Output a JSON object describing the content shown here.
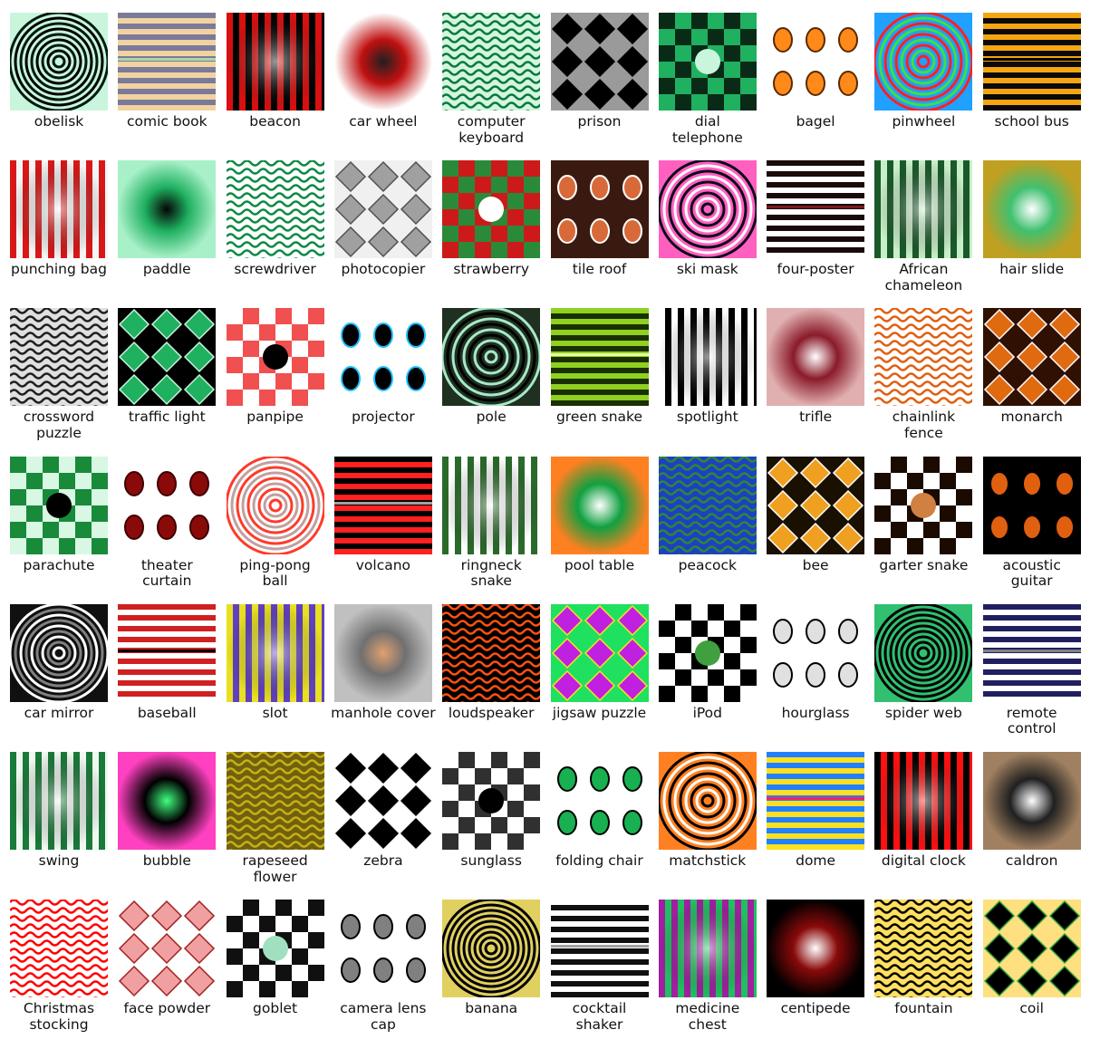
{
  "images": [
    {
      "label": "obelisk",
      "icon": "obelisk-pattern",
      "colors": [
        "#021a10",
        "#c8f5dc"
      ]
    },
    {
      "label": "comic book",
      "icon": "comic-book-pattern",
      "colors": [
        "#7a7a9a",
        "#f2d2a0",
        "#a8d8a8"
      ]
    },
    {
      "label": "beacon",
      "icon": "beacon-pattern",
      "colors": [
        "#d81010",
        "#000000",
        "#ffffff"
      ]
    },
    {
      "label": "car wheel",
      "icon": "car-wheel-pattern",
      "colors": [
        "#c01010",
        "#202020",
        "#ffffff"
      ]
    },
    {
      "label": "computer\nkeyboard",
      "icon": "computer-keyboard-pattern",
      "colors": [
        "#0a7a3a",
        "#d4f5e0",
        "#111111"
      ]
    },
    {
      "label": "prison",
      "icon": "prison-pattern",
      "colors": [
        "#000000",
        "#9a9a9a"
      ]
    },
    {
      "label": "dial\ntelephone",
      "icon": "dial-telephone-pattern",
      "colors": [
        "#1fb060",
        "#0a2a18",
        "#c8f5dc"
      ]
    },
    {
      "label": "bagel",
      "icon": "bagel-pattern",
      "colors": [
        "#ff8a1a",
        "#ffffff",
        "#5a2a00"
      ]
    },
    {
      "label": "pinwheel",
      "icon": "pinwheel-pattern",
      "colors": [
        "#ff2020",
        "#20a0ff",
        "#40e040",
        "#ffe020"
      ]
    },
    {
      "label": "school bus",
      "icon": "school-bus-pattern",
      "colors": [
        "#f5a511",
        "#0a0a0a"
      ]
    },
    {
      "label": "punching bag",
      "icon": "punching-bag-pattern",
      "colors": [
        "#d81818",
        "#f5f5f5",
        "#6a6a6a"
      ]
    },
    {
      "label": "paddle",
      "icon": "paddle-pattern",
      "colors": [
        "#1fb060",
        "#050505",
        "#a8f0c8"
      ]
    },
    {
      "label": "screwdriver",
      "icon": "screwdriver-pattern",
      "colors": [
        "#0e8a44",
        "#ffffff",
        "#000000"
      ]
    },
    {
      "label": "photocopier",
      "icon": "photocopier-pattern",
      "colors": [
        "#a0a0a0",
        "#f0f0f0",
        "#505050"
      ]
    },
    {
      "label": "strawberry",
      "icon": "strawberry-pattern",
      "colors": [
        "#cc1a1a",
        "#2a8a3a",
        "#ffffff"
      ]
    },
    {
      "label": "tile roof",
      "icon": "tile-roof-pattern",
      "colors": [
        "#d86a3a",
        "#3a1a10",
        "#ffffff"
      ]
    },
    {
      "label": "ski mask",
      "icon": "ski-mask-pattern",
      "colors": [
        "#0a0a1a",
        "#ff60c0",
        "#ffffff"
      ]
    },
    {
      "label": "four-poster",
      "icon": "four-poster-pattern",
      "colors": [
        "#1a0a0a",
        "#ffffff",
        "#7a1a1a"
      ]
    },
    {
      "label": "African\nchameleon",
      "icon": "african-chameleon-pattern",
      "colors": [
        "#1a5a2a",
        "#c8f0c8",
        "#000000"
      ]
    },
    {
      "label": "hair slide",
      "icon": "hair-slide-pattern",
      "colors": [
        "#40c070",
        "#ffffff",
        "#c0a020"
      ]
    },
    {
      "label": "crossword\npuzzle",
      "icon": "crossword-puzzle-pattern",
      "colors": [
        "#202020",
        "#e0e0e0"
      ]
    },
    {
      "label": "traffic light",
      "icon": "traffic-light-pattern",
      "colors": [
        "#1fb060",
        "#000000",
        "#c8f5dc"
      ]
    },
    {
      "label": "panpipe",
      "icon": "panpipe-pattern",
      "colors": [
        "#f05050",
        "#ffffff"
      ]
    },
    {
      "label": "projector",
      "icon": "projector-pattern",
      "colors": [
        "#000000",
        "#ffffff",
        "#20c0ff"
      ]
    },
    {
      "label": "pole",
      "icon": "pole-pattern",
      "colors": [
        "#a8e8c8",
        "#203020"
      ]
    },
    {
      "label": "green snake",
      "icon": "green-snake-pattern",
      "colors": [
        "#90d020",
        "#1a3000",
        "#e8ffa0"
      ]
    },
    {
      "label": "spotlight",
      "icon": "spotlight-pattern",
      "colors": [
        "#ffffff",
        "#000000"
      ]
    },
    {
      "label": "trifle",
      "icon": "trifle-pattern",
      "colors": [
        "#8a1a2a",
        "#ffffff",
        "#e0b0b0"
      ]
    },
    {
      "label": "chainlink\nfence",
      "icon": "chainlink-fence-pattern",
      "colors": [
        "#e06010",
        "#ffffff",
        "#101010"
      ]
    },
    {
      "label": "monarch",
      "icon": "monarch-pattern",
      "colors": [
        "#e06a10",
        "#301000",
        "#ffffff"
      ]
    },
    {
      "label": "parachute",
      "icon": "parachute-pattern",
      "colors": [
        "#d8f8e4",
        "#188a3a"
      ]
    },
    {
      "label": "theater\ncurtain",
      "icon": "theater-curtain-pattern",
      "colors": [
        "#8a0a0a",
        "#ffffff",
        "#400000"
      ]
    },
    {
      "label": "ping-pong\nball",
      "icon": "ping-pong-ball-pattern",
      "colors": [
        "#ff3a2a",
        "#ffffff",
        "#c0a0a0"
      ]
    },
    {
      "label": "volcano",
      "icon": "volcano-pattern",
      "colors": [
        "#000000",
        "#ff2020",
        "#a0a0a0"
      ]
    },
    {
      "label": "ringneck\nsnake",
      "icon": "ringneck-snake-pattern",
      "colors": [
        "#2a6a2a",
        "#ffffff",
        "#d0b080"
      ]
    },
    {
      "label": "pool table",
      "icon": "pool-table-pattern",
      "colors": [
        "#10a040",
        "#ffffff",
        "#ff8020"
      ]
    },
    {
      "label": "peacock",
      "icon": "peacock-pattern",
      "colors": [
        "#2a8a3a",
        "#2040c0",
        "#ffffff"
      ]
    },
    {
      "label": "bee",
      "icon": "bee-pattern",
      "colors": [
        "#f0a020",
        "#1a1000",
        "#ffffff"
      ]
    },
    {
      "label": "garter snake",
      "icon": "garter-snake-pattern",
      "colors": [
        "#1a0a00",
        "#ffffff",
        "#d08040"
      ]
    },
    {
      "label": "acoustic\nguitar",
      "icon": "acoustic-guitar-pattern",
      "colors": [
        "#e06010",
        "#000000"
      ]
    },
    {
      "label": "car mirror",
      "icon": "car-mirror-pattern",
      "colors": [
        "#ffffff",
        "#101010",
        "#808080"
      ]
    },
    {
      "label": "baseball",
      "icon": "baseball-pattern",
      "colors": [
        "#d02020",
        "#ffffff"
      ]
    },
    {
      "label": "slot",
      "icon": "slot-pattern",
      "colors": [
        "#e8e020",
        "#6040c0",
        "#ffffff"
      ]
    },
    {
      "label": "manhole cover",
      "icon": "manhole-cover-pattern",
      "colors": [
        "#707070",
        "#e0a070",
        "#c0c0c0"
      ]
    },
    {
      "label": "loudspeaker",
      "icon": "loudspeaker-pattern",
      "colors": [
        "#ff5010",
        "#000000",
        "#ffffff"
      ]
    },
    {
      "label": "jigsaw puzzle",
      "icon": "jigsaw-puzzle-pattern",
      "colors": [
        "#c020e0",
        "#20e060",
        "#ffe020"
      ]
    },
    {
      "label": "iPod",
      "icon": "ipod-pattern",
      "colors": [
        "#000000",
        "#ffffff",
        "#40a040"
      ]
    },
    {
      "label": "hourglass",
      "icon": "hourglass-pattern",
      "colors": [
        "#e0e0e0",
        "#ffffff"
      ]
    },
    {
      "label": "spider web",
      "icon": "spider-web-pattern",
      "colors": [
        "#000000",
        "#30c070"
      ]
    },
    {
      "label": "remote\ncontrol",
      "icon": "remote-control-pattern",
      "colors": [
        "#202060",
        "#ffffff",
        "#808080"
      ]
    },
    {
      "label": "swing",
      "icon": "swing-pattern",
      "colors": [
        "#1a7a3a",
        "#f0f8f0"
      ]
    },
    {
      "label": "bubble",
      "icon": "bubble-pattern",
      "colors": [
        "#000000",
        "#40ff80",
        "#ff40c0"
      ]
    },
    {
      "label": "rapeseed\nflower",
      "icon": "rapeseed-flower-pattern",
      "colors": [
        "#c8b010",
        "#706010"
      ]
    },
    {
      "label": "zebra",
      "icon": "zebra-pattern",
      "colors": [
        "#000000",
        "#ffffff"
      ]
    },
    {
      "label": "sunglass",
      "icon": "sunglass-pattern",
      "colors": [
        "#303030",
        "#ffffff"
      ]
    },
    {
      "label": "folding chair",
      "icon": "folding-chair-pattern",
      "colors": [
        "#18b050",
        "#ffffff",
        "#000000"
      ]
    },
    {
      "label": "matchstick",
      "icon": "matchstick-pattern",
      "colors": [
        "#000000",
        "#ff8020",
        "#ffffff"
      ]
    },
    {
      "label": "dome",
      "icon": "dome-pattern",
      "colors": [
        "#2080ff",
        "#ffe020",
        "#ff2060",
        "#40e060"
      ]
    },
    {
      "label": "digital clock",
      "icon": "digital-clock-pattern",
      "colors": [
        "#000000",
        "#ff1010"
      ]
    },
    {
      "label": "caldron",
      "icon": "caldron-pattern",
      "colors": [
        "#202020",
        "#ffffff",
        "#a08060"
      ]
    },
    {
      "label": "Christmas\nstocking",
      "icon": "christmas-stocking-pattern",
      "colors": [
        "#ff0000",
        "#ffffff"
      ]
    },
    {
      "label": "face powder",
      "icon": "face-powder-pattern",
      "colors": [
        "#f0a0a0",
        "#ffffff",
        "#a02020"
      ]
    },
    {
      "label": "goblet",
      "icon": "goblet-pattern",
      "colors": [
        "#101010",
        "#ffffff",
        "#a0e0c0"
      ]
    },
    {
      "label": "camera lens\ncap",
      "icon": "camera-lens-cap-pattern",
      "colors": [
        "#808080",
        "#ffffff",
        "#000000"
      ]
    },
    {
      "label": "banana",
      "icon": "banana-pattern",
      "colors": [
        "#000000",
        "#e0d060"
      ]
    },
    {
      "label": "cocktail\nshaker",
      "icon": "cocktail-shaker-pattern",
      "colors": [
        "#ffffff",
        "#101010",
        "#a0a0a0"
      ]
    },
    {
      "label": "medicine\nchest",
      "icon": "medicine-chest-pattern",
      "colors": [
        "#a020a0",
        "#20c060",
        "#ffffff"
      ]
    },
    {
      "label": "centipede",
      "icon": "centipede-pattern",
      "colors": [
        "#8a0a0a",
        "#ffffff"
      ]
    },
    {
      "label": "fountain",
      "icon": "fountain-pattern",
      "colors": [
        "#000000",
        "#ffe060",
        "#ffffff"
      ]
    },
    {
      "label": "coil",
      "icon": "coil-pattern",
      "colors": [
        "#000000",
        "#ffe080",
        "#30a040",
        "#ff6020"
      ]
    }
  ]
}
